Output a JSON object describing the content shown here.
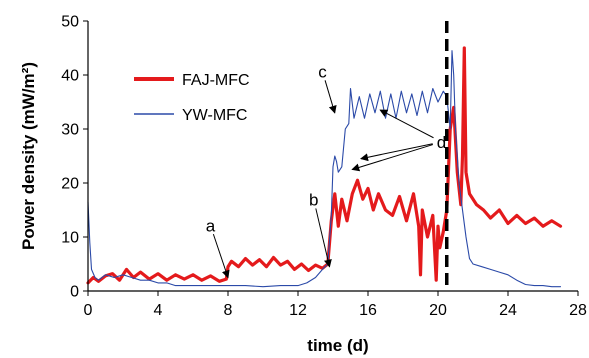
{
  "chart_data": {
    "type": "line",
    "xlabel": "time (d)",
    "ylabel": "Power density (mW/m²)",
    "xlim": [
      0,
      28
    ],
    "ylim": [
      0,
      50
    ],
    "xticks": [
      0,
      4,
      8,
      12,
      16,
      20,
      24,
      28
    ],
    "yticks": [
      0,
      10,
      20,
      30,
      40,
      50
    ],
    "grid": false,
    "legend_position": "top-left",
    "vertical_marker": {
      "x": 20.5,
      "style": "dashed",
      "color": "#000000"
    },
    "series": [
      {
        "name": "FAJ-MFC",
        "color": "#e41a1c",
        "line_width": 3.2,
        "x": [
          0,
          0.3,
          0.6,
          1.0,
          1.4,
          1.8,
          2.2,
          2.6,
          3.0,
          3.5,
          4.0,
          4.5,
          5.0,
          5.5,
          6.0,
          6.5,
          7.0,
          7.5,
          7.9,
          8.0,
          8.2,
          8.6,
          9.0,
          9.4,
          9.8,
          10.2,
          10.6,
          11.0,
          11.4,
          11.8,
          12.2,
          12.6,
          13.0,
          13.4,
          13.7,
          13.9,
          14.1,
          14.3,
          14.5,
          14.8,
          15.1,
          15.4,
          15.7,
          16.0,
          16.3,
          16.6,
          17.0,
          17.4,
          17.8,
          18.2,
          18.6,
          18.9,
          19.0,
          19.1,
          19.4,
          19.7,
          19.9,
          20.0,
          20.1,
          20.3,
          20.5,
          20.7,
          20.9,
          21.1,
          21.3,
          21.4,
          21.5,
          21.6,
          21.8,
          22.2,
          22.6,
          23.0,
          23.5,
          24.0,
          24.5,
          25.0,
          25.5,
          26.0,
          26.5,
          27.0
        ],
        "values": [
          1.5,
          2.5,
          1.8,
          2.8,
          3.2,
          2.0,
          4.0,
          2.5,
          3.5,
          2.2,
          3.2,
          2.0,
          3.0,
          2.2,
          3.0,
          2.0,
          2.8,
          1.8,
          2.2,
          4.5,
          5.5,
          4.5,
          6.0,
          4.8,
          5.8,
          4.5,
          6.2,
          4.8,
          5.5,
          4.0,
          5.0,
          3.8,
          4.8,
          4.2,
          5.0,
          13.0,
          18.0,
          12.0,
          17.0,
          13.0,
          18.0,
          20.5,
          17.0,
          19.0,
          15.0,
          18.0,
          15.0,
          14.0,
          17.5,
          13.0,
          18.0,
          12.0,
          3.0,
          15.0,
          10.0,
          14.0,
          2.0,
          12.0,
          8.0,
          11.0,
          15.0,
          30.0,
          34.0,
          22.0,
          16.0,
          25.0,
          45.0,
          22.0,
          18.0,
          16.0,
          15.0,
          13.5,
          15.0,
          12.5,
          14.0,
          12.5,
          13.5,
          12.0,
          13.0,
          12.0
        ]
      },
      {
        "name": "YW-MFC",
        "color": "#2b4aa8",
        "line_width": 1.1,
        "x": [
          0,
          0.1,
          0.2,
          0.4,
          0.6,
          1.0,
          1.5,
          2.0,
          2.5,
          3.0,
          3.5,
          4.0,
          4.5,
          5.0,
          5.5,
          6.0,
          7.0,
          8.0,
          9.0,
          10.0,
          11.0,
          12.0,
          12.5,
          13.0,
          13.4,
          13.7,
          13.9,
          14.0,
          14.1,
          14.2,
          14.3,
          14.5,
          14.7,
          14.9,
          15.0,
          15.2,
          15.5,
          15.8,
          16.1,
          16.4,
          16.7,
          17.0,
          17.3,
          17.6,
          17.9,
          18.2,
          18.5,
          18.8,
          19.1,
          19.4,
          19.7,
          20.0,
          20.3,
          20.5,
          20.6,
          20.7,
          20.8,
          20.9,
          21.0,
          21.2,
          21.4,
          21.6,
          21.8,
          22.0,
          22.5,
          23.0,
          23.5,
          24.0,
          24.5,
          25.0,
          25.5,
          26.0,
          26.5,
          27.0
        ],
        "values": [
          16.5,
          9.0,
          4.0,
          2.5,
          2.0,
          3.0,
          2.5,
          3.0,
          2.5,
          2.0,
          2.0,
          1.5,
          1.5,
          1.0,
          1.0,
          1.0,
          1.0,
          1.0,
          1.0,
          0.8,
          1.0,
          1.0,
          1.5,
          2.5,
          4.0,
          5.0,
          14.0,
          23.0,
          25.0,
          24.0,
          22.0,
          23.0,
          30.0,
          31.0,
          37.5,
          32.0,
          36.0,
          32.0,
          36.5,
          33.0,
          37.0,
          32.0,
          36.5,
          32.0,
          37.0,
          33.0,
          36.5,
          32.5,
          37.0,
          33.0,
          37.5,
          35.0,
          37.0,
          36.0,
          33.0,
          30.0,
          44.5,
          40.0,
          30.0,
          20.0,
          15.0,
          10.0,
          6.0,
          5.0,
          4.5,
          4.0,
          3.5,
          3.0,
          2.0,
          1.2,
          1.0,
          1.0,
          0.8,
          0.8
        ]
      }
    ],
    "annotations": [
      {
        "text": "a",
        "label_at": [
          7.0,
          11.0
        ],
        "arrow_to": [
          8.0,
          2.5
        ]
      },
      {
        "text": "b",
        "label_at": [
          12.9,
          15.8
        ],
        "arrow_to": [
          13.8,
          4.5
        ]
      },
      {
        "text": "c",
        "label_at": [
          13.4,
          39.5
        ],
        "arrow_to": [
          14.1,
          33.0
        ]
      },
      {
        "text": "d",
        "label_at": [
          20.2,
          26.5
        ],
        "arrow_to": [
          [
            16.7,
            33.5
          ],
          [
            15.6,
            24.5
          ],
          [
            15.1,
            22.5
          ]
        ]
      }
    ]
  }
}
